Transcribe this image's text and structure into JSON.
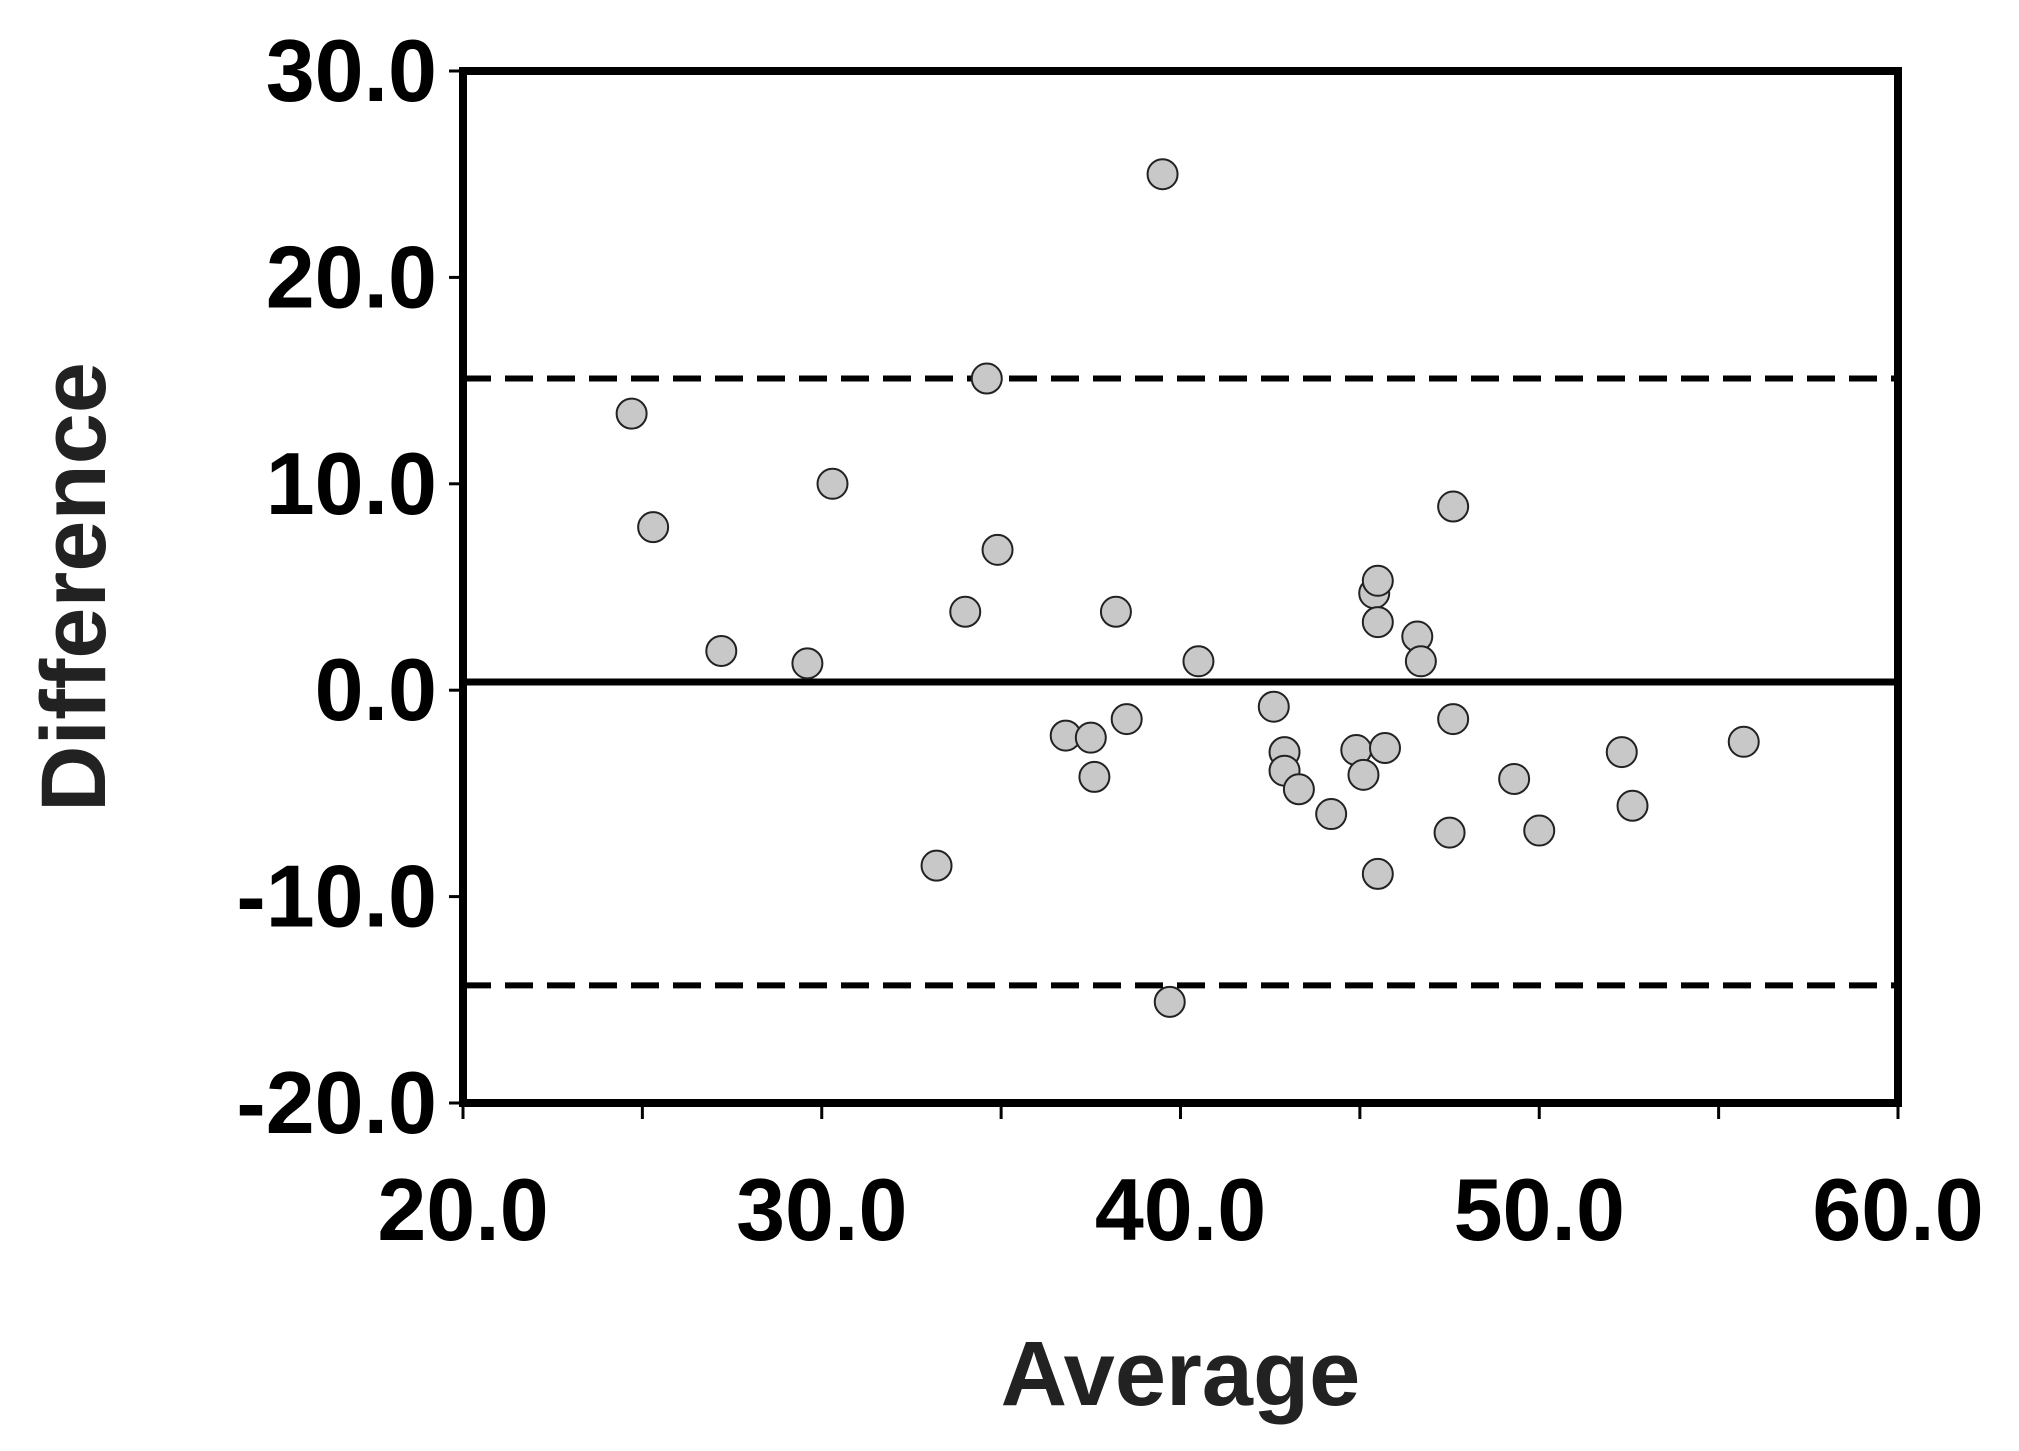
{
  "chart_data": {
    "type": "scatter",
    "title": "",
    "xlabel": "Average",
    "ylabel": "Difference",
    "xlim": [
      20,
      60
    ],
    "ylim": [
      -20,
      30
    ],
    "x_ticks": [
      "20.0",
      "30.0",
      "40.0",
      "50.0",
      "60.0"
    ],
    "y_ticks": [
      "30.0",
      "20.0",
      "10.0",
      "0.0",
      "-10.0",
      "-20.0"
    ],
    "grid": false,
    "mean_line": 0.4,
    "upper_limit": 15.1,
    "lower_limit": -14.3,
    "marker_color": "#c8c8c8",
    "line_color": "#000000",
    "points": [
      {
        "x": 24.7,
        "y": 13.4
      },
      {
        "x": 25.3,
        "y": 7.9
      },
      {
        "x": 27.2,
        "y": 1.9
      },
      {
        "x": 29.6,
        "y": 1.3
      },
      {
        "x": 30.3,
        "y": 10.0
      },
      {
        "x": 33.2,
        "y": -8.5
      },
      {
        "x": 34.0,
        "y": 3.8
      },
      {
        "x": 34.6,
        "y": 15.1
      },
      {
        "x": 34.9,
        "y": 6.8
      },
      {
        "x": 36.8,
        "y": -2.2
      },
      {
        "x": 37.5,
        "y": -2.3
      },
      {
        "x": 37.6,
        "y": -4.2
      },
      {
        "x": 38.2,
        "y": 3.8
      },
      {
        "x": 38.5,
        "y": -1.4
      },
      {
        "x": 39.5,
        "y": 25.0
      },
      {
        "x": 39.7,
        "y": -15.1
      },
      {
        "x": 40.5,
        "y": 1.4
      },
      {
        "x": 42.6,
        "y": -0.8
      },
      {
        "x": 42.9,
        "y": -3.0
      },
      {
        "x": 42.9,
        "y": -3.9
      },
      {
        "x": 43.3,
        "y": -4.8
      },
      {
        "x": 44.2,
        "y": -6.0
      },
      {
        "x": 44.9,
        "y": -2.9
      },
      {
        "x": 45.1,
        "y": -4.1
      },
      {
        "x": 45.4,
        "y": 4.7
      },
      {
        "x": 45.5,
        "y": 5.3
      },
      {
        "x": 45.5,
        "y": 3.3
      },
      {
        "x": 45.5,
        "y": -8.9
      },
      {
        "x": 45.7,
        "y": -2.8
      },
      {
        "x": 46.6,
        "y": 2.6
      },
      {
        "x": 46.7,
        "y": 1.4
      },
      {
        "x": 47.6,
        "y": 8.9
      },
      {
        "x": 47.6,
        "y": -1.4
      },
      {
        "x": 47.5,
        "y": -6.9
      },
      {
        "x": 49.3,
        "y": -4.3
      },
      {
        "x": 50.0,
        "y": -6.8
      },
      {
        "x": 52.3,
        "y": -3.0
      },
      {
        "x": 52.6,
        "y": -5.6
      },
      {
        "x": 55.7,
        "y": -2.5
      }
    ]
  }
}
